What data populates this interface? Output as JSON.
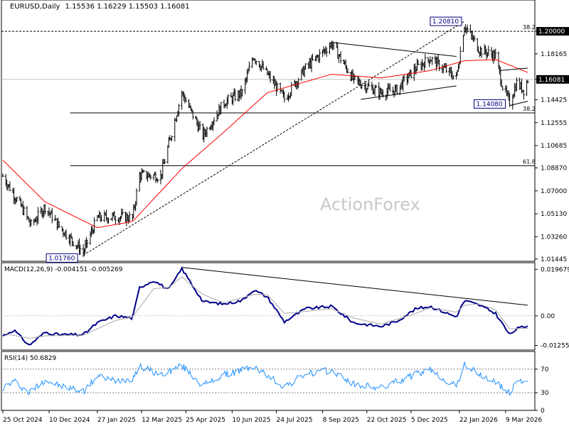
{
  "header": {
    "symbol": "EURUSD,Daily",
    "ohlc": "1.15536 1.16229 1.15503 1.16081"
  },
  "watermark": "ActionForex",
  "colors": {
    "price": "#000000",
    "ma": "#ff0000",
    "macd_main": "#00008b",
    "macd_signal": "#a9a9a9",
    "rsi": "#1e90ff",
    "current_price_box": "#000000"
  },
  "chart_data": [
    {
      "type": "candlestick",
      "panel": "price",
      "title": "EURUSD,Daily",
      "y_ticks": [
        "1.20000",
        "1.18165",
        "1.16081",
        "1.14425",
        "1.12555",
        "1.10685",
        "1.08870",
        "1.07000",
        "1.05130",
        "1.03260",
        "1.01445"
      ],
      "ylim": [
        1.0126,
        1.2255
      ],
      "x_ticks": [
        "25 Oct 2024",
        "10 Dec 2024",
        "27 Jan 2025",
        "12 Mar 2025",
        "25 Apr 2025",
        "10 Jun 2025",
        "24 Jul 2025",
        "8 Sep 2025",
        "22 Oct 2025",
        "5 Dec 2025",
        "22 Jan 2026",
        "9 Mar 2026"
      ],
      "anchors": [
        {
          "date": "2024-10-25",
          "close": 1.082
        },
        {
          "date": "2024-11-13",
          "close": 1.056
        },
        {
          "date": "2024-11-22",
          "close": 1.042
        },
        {
          "date": "2024-12-06",
          "close": 1.057
        },
        {
          "date": "2024-12-20",
          "close": 1.041
        },
        {
          "date": "2025-01-13",
          "close": 1.02
        },
        {
          "date": "2025-01-27",
          "close": 1.048
        },
        {
          "date": "2025-02-14",
          "close": 1.049
        },
        {
          "date": "2025-03-03",
          "close": 1.048
        },
        {
          "date": "2025-03-10",
          "close": 1.083
        },
        {
          "date": "2025-03-31",
          "close": 1.082
        },
        {
          "date": "2025-04-21",
          "close": 1.15
        },
        {
          "date": "2025-05-12",
          "close": 1.115
        },
        {
          "date": "2025-06-02",
          "close": 1.142
        },
        {
          "date": "2025-06-20",
          "close": 1.15
        },
        {
          "date": "2025-07-01",
          "close": 1.18
        },
        {
          "date": "2025-07-15",
          "close": 1.165
        },
        {
          "date": "2025-08-01",
          "close": 1.145
        },
        {
          "date": "2025-08-22",
          "close": 1.17
        },
        {
          "date": "2025-09-17",
          "close": 1.19
        },
        {
          "date": "2025-10-09",
          "close": 1.16
        },
        {
          "date": "2025-11-05",
          "close": 1.15
        },
        {
          "date": "2025-11-20",
          "close": 1.152
        },
        {
          "date": "2025-12-10",
          "close": 1.17
        },
        {
          "date": "2025-12-24",
          "close": 1.178
        },
        {
          "date": "2026-01-19",
          "close": 1.162
        },
        {
          "date": "2026-01-27",
          "close": 1.205
        },
        {
          "date": "2026-02-11",
          "close": 1.185
        },
        {
          "date": "2026-02-27",
          "close": 1.18
        },
        {
          "date": "2026-03-06",
          "close": 1.155
        },
        {
          "date": "2026-03-13",
          "close": 1.142
        },
        {
          "date": "2026-03-20",
          "close": 1.158
        },
        {
          "date": "2026-03-27",
          "close": 1.152
        },
        {
          "date": "2026-03-31",
          "close": 1.1608
        }
      ],
      "moving_average_anchors": [
        {
          "date": "2024-10-25",
          "value": 1.095
        },
        {
          "date": "2024-12-06",
          "value": 1.061
        },
        {
          "date": "2025-01-27",
          "value": 1.04
        },
        {
          "date": "2025-03-03",
          "value": 1.045
        },
        {
          "date": "2025-04-21",
          "value": 1.088
        },
        {
          "date": "2025-06-02",
          "value": 1.118
        },
        {
          "date": "2025-07-15",
          "value": 1.15
        },
        {
          "date": "2025-09-17",
          "value": 1.165
        },
        {
          "date": "2025-11-05",
          "value": 1.162
        },
        {
          "date": "2025-12-24",
          "value": 1.168
        },
        {
          "date": "2026-01-27",
          "value": 1.176
        },
        {
          "date": "2026-02-27",
          "value": 1.177
        },
        {
          "date": "2026-03-31",
          "value": 1.1665
        }
      ],
      "horizontal_lines": [
        {
          "value": 1.2,
          "style": "dashed",
          "label": "38.2",
          "boxed": "1.20000"
        },
        {
          "value": 1.16081,
          "style": "solid",
          "color": "#c0c0c0",
          "boxed": "1.16081"
        },
        {
          "value": 1.1335,
          "style": "solid",
          "label": "38.2"
        },
        {
          "value": 1.0905,
          "style": "solid",
          "label": "61.8"
        }
      ],
      "trendlines": [
        {
          "from": {
            "date": "2025-01-13",
            "price": 1.0176
          },
          "to": {
            "date": "2026-01-27",
            "price": 1.2081
          },
          "style": "dashed"
        },
        {
          "from": {
            "date": "2025-09-17",
            "price": 1.191
          },
          "to": {
            "date": "2026-01-19",
            "price": 1.1795
          },
          "style": "solid"
        },
        {
          "from": {
            "date": "2025-10-16",
            "price": 1.1445
          },
          "to": {
            "date": "2026-01-19",
            "price": 1.1555
          },
          "style": "solid"
        },
        {
          "from": {
            "date": "2026-03-03",
            "price": 1.168
          },
          "to": {
            "date": "2026-03-31",
            "price": 1.17
          },
          "style": "solid"
        },
        {
          "from": {
            "date": "2026-03-13",
            "price": 1.1395
          },
          "to": {
            "date": "2026-03-31",
            "price": 1.143
          },
          "style": "solid"
        }
      ],
      "annotations": [
        {
          "text": "1.20810",
          "date": "2026-01-27",
          "price": 1.2081
        },
        {
          "text": "1.14080",
          "date": "2026-03-13",
          "price": 1.1408
        },
        {
          "text": "1.01760",
          "date": "2025-01-13",
          "price": 1.0176
        }
      ]
    },
    {
      "type": "line",
      "panel": "macd",
      "title": "MACD(12,26,9) -0.004151 -0.005269",
      "y_ticks": [
        "0.019679",
        "0.00",
        "-0.012552"
      ],
      "ylim": [
        -0.0145,
        0.0225
      ],
      "series": [
        {
          "name": "MACD",
          "anchors": [
            {
              "date": "2024-10-25",
              "value": -0.0085
            },
            {
              "date": "2024-11-05",
              "value": -0.006
            },
            {
              "date": "2024-11-20",
              "value": -0.0125
            },
            {
              "date": "2024-12-06",
              "value": -0.007
            },
            {
              "date": "2024-12-20",
              "value": -0.008
            },
            {
              "date": "2025-01-13",
              "value": -0.008
            },
            {
              "date": "2025-01-27",
              "value": -0.003
            },
            {
              "date": "2025-02-14",
              "value": 0.0
            },
            {
              "date": "2025-03-03",
              "value": -0.001
            },
            {
              "date": "2025-03-10",
              "value": 0.012
            },
            {
              "date": "2025-03-24",
              "value": 0.015
            },
            {
              "date": "2025-04-08",
              "value": 0.011
            },
            {
              "date": "2025-04-21",
              "value": 0.02
            },
            {
              "date": "2025-05-12",
              "value": 0.006
            },
            {
              "date": "2025-06-02",
              "value": 0.005
            },
            {
              "date": "2025-06-20",
              "value": 0.0065
            },
            {
              "date": "2025-07-01",
              "value": 0.011
            },
            {
              "date": "2025-07-15",
              "value": 0.008
            },
            {
              "date": "2025-08-01",
              "value": -0.0025
            },
            {
              "date": "2025-08-22",
              "value": 0.003
            },
            {
              "date": "2025-09-17",
              "value": 0.004
            },
            {
              "date": "2025-10-09",
              "value": -0.003
            },
            {
              "date": "2025-11-05",
              "value": -0.0045
            },
            {
              "date": "2025-11-20",
              "value": -0.0025
            },
            {
              "date": "2025-12-10",
              "value": 0.003
            },
            {
              "date": "2025-12-24",
              "value": 0.004
            },
            {
              "date": "2026-01-19",
              "value": -0.0005
            },
            {
              "date": "2026-01-27",
              "value": 0.0065
            },
            {
              "date": "2026-02-11",
              "value": 0.0045
            },
            {
              "date": "2026-02-27",
              "value": 0.001
            },
            {
              "date": "2026-03-13",
              "value": -0.008
            },
            {
              "date": "2026-03-20",
              "value": -0.0055
            },
            {
              "date": "2026-03-31",
              "value": -0.0042
            }
          ]
        },
        {
          "name": "Signal",
          "anchors": [
            {
              "date": "2024-10-25",
              "value": -0.0075
            },
            {
              "date": "2024-11-20",
              "value": -0.0095
            },
            {
              "date": "2024-12-06",
              "value": -0.0085
            },
            {
              "date": "2025-01-13",
              "value": -0.0082
            },
            {
              "date": "2025-02-14",
              "value": -0.002
            },
            {
              "date": "2025-03-03",
              "value": -0.0005
            },
            {
              "date": "2025-03-24",
              "value": 0.0115
            },
            {
              "date": "2025-04-08",
              "value": 0.012
            },
            {
              "date": "2025-04-21",
              "value": 0.0165
            },
            {
              "date": "2025-05-12",
              "value": 0.009
            },
            {
              "date": "2025-06-02",
              "value": 0.0055
            },
            {
              "date": "2025-07-01",
              "value": 0.009
            },
            {
              "date": "2025-07-15",
              "value": 0.009
            },
            {
              "date": "2025-08-01",
              "value": 0.001
            },
            {
              "date": "2025-09-17",
              "value": 0.003
            },
            {
              "date": "2025-10-09",
              "value": -0.001
            },
            {
              "date": "2025-11-05",
              "value": -0.0035
            },
            {
              "date": "2025-12-10",
              "value": 0.001
            },
            {
              "date": "2025-12-24",
              "value": 0.0035
            },
            {
              "date": "2026-01-19",
              "value": 0.0015
            },
            {
              "date": "2026-01-27",
              "value": 0.0045
            },
            {
              "date": "2026-02-11",
              "value": 0.005
            },
            {
              "date": "2026-02-27",
              "value": 0.0025
            },
            {
              "date": "2026-03-13",
              "value": -0.0055
            },
            {
              "date": "2026-03-31",
              "value": -0.0053
            }
          ]
        }
      ],
      "trendline": {
        "from": {
          "date": "2025-04-21",
          "value": 0.0205
        },
        "to": {
          "date": "2026-03-31",
          "value": 0.0045
        }
      }
    },
    {
      "type": "line",
      "panel": "rsi",
      "title": "RSI(14) 50.6829",
      "y_ticks": [
        "70",
        "30",
        "0"
      ],
      "ylim": [
        0,
        100
      ],
      "levels": [
        70,
        30
      ],
      "series": [
        {
          "name": "RSI",
          "anchors": [
            {
              "date": "2024-10-25",
              "value": 38
            },
            {
              "date": "2024-11-05",
              "value": 50
            },
            {
              "date": "2024-11-20",
              "value": 30
            },
            {
              "date": "2024-12-06",
              "value": 52
            },
            {
              "date": "2024-12-20",
              "value": 42
            },
            {
              "date": "2025-01-13",
              "value": 32
            },
            {
              "date": "2025-01-27",
              "value": 58
            },
            {
              "date": "2025-02-14",
              "value": 50
            },
            {
              "date": "2025-03-03",
              "value": 55
            },
            {
              "date": "2025-03-10",
              "value": 75
            },
            {
              "date": "2025-03-31",
              "value": 60
            },
            {
              "date": "2025-04-21",
              "value": 76
            },
            {
              "date": "2025-05-12",
              "value": 42
            },
            {
              "date": "2025-06-02",
              "value": 60
            },
            {
              "date": "2025-07-01",
              "value": 74
            },
            {
              "date": "2025-08-01",
              "value": 40
            },
            {
              "date": "2025-08-22",
              "value": 62
            },
            {
              "date": "2025-09-17",
              "value": 68
            },
            {
              "date": "2025-10-09",
              "value": 44
            },
            {
              "date": "2025-11-05",
              "value": 38
            },
            {
              "date": "2025-12-10",
              "value": 62
            },
            {
              "date": "2025-12-24",
              "value": 68
            },
            {
              "date": "2026-01-19",
              "value": 40
            },
            {
              "date": "2026-01-27",
              "value": 78
            },
            {
              "date": "2026-02-11",
              "value": 60
            },
            {
              "date": "2026-02-27",
              "value": 48
            },
            {
              "date": "2026-03-13",
              "value": 28
            },
            {
              "date": "2026-03-20",
              "value": 52
            },
            {
              "date": "2026-03-31",
              "value": 50.68
            }
          ]
        }
      ]
    }
  ]
}
